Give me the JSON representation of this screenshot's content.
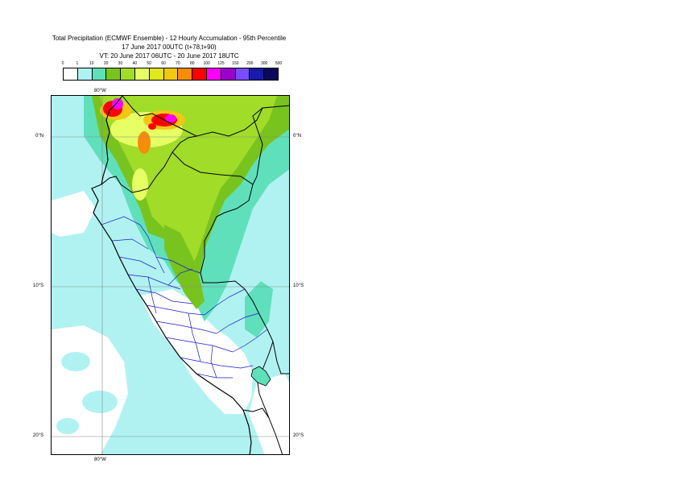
{
  "title": {
    "line1": "Total Precipitation (ECMWF Ensemble) - 12 Hourly Accumulation - 95th Percentile",
    "line2": "17 June 2017 00UTC (t+78,t+90)",
    "line3": "VT: 20 June 2017 06UTC - 20 June 2017 18UTC"
  },
  "legend": {
    "ticks": [
      "0",
      "1",
      "10",
      "20",
      "30",
      "40",
      "50",
      "60",
      "70",
      "80",
      "100",
      "125",
      "150",
      "200",
      "300",
      "500"
    ],
    "colors": [
      "#ffffff",
      "#b0f2f2",
      "#5fe0bb",
      "#78c31e",
      "#a0dc28",
      "#e6ff64",
      "#e2e61e",
      "#f0c814",
      "#f58c0a",
      "#ff0000",
      "#ff00ff",
      "#9900cc",
      "#7a4cff",
      "#1a1aa8",
      "#0a0a5c"
    ]
  },
  "map": {
    "lon_labels": {
      "top": "80°W",
      "bottom": "80°W"
    },
    "lat_labels": {
      "lat0": "0°N",
      "lat10": "10°S",
      "lat20": "20°S"
    }
  }
}
